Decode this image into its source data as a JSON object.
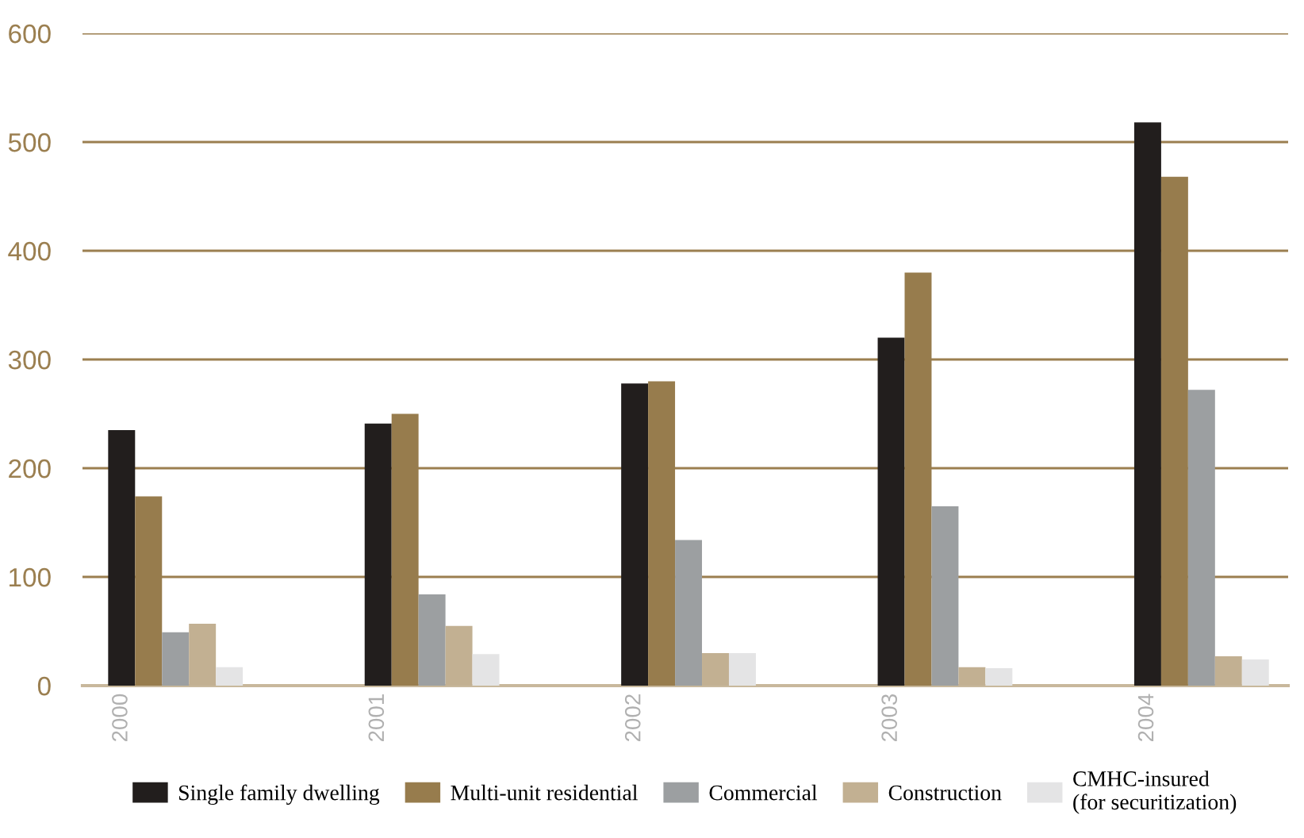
{
  "chart_data": {
    "type": "bar",
    "categories": [
      "2000",
      "2001",
      "2002",
      "2003",
      "2004"
    ],
    "series": [
      {
        "name": "Single family dwelling",
        "color": "#221e1d",
        "values": [
          235,
          241,
          278,
          320,
          518
        ]
      },
      {
        "name": "Multi-unit residential",
        "color": "#977c4d",
        "values": [
          174,
          250,
          280,
          380,
          468
        ]
      },
      {
        "name": "Commercial",
        "color": "#9c9fa1",
        "values": [
          49,
          84,
          134,
          165,
          272
        ]
      },
      {
        "name": "Construction",
        "color": "#c2b092",
        "values": [
          57,
          55,
          30,
          17,
          27
        ]
      },
      {
        "name": "CMHC-insured\n(for securitization)",
        "color": "#e4e4e5",
        "values": [
          17,
          29,
          30,
          16,
          24
        ]
      }
    ],
    "ylim": [
      0,
      600
    ],
    "yticks": [
      0,
      100,
      200,
      300,
      400,
      500,
      600
    ],
    "grid": "y",
    "legend": "bottom"
  }
}
